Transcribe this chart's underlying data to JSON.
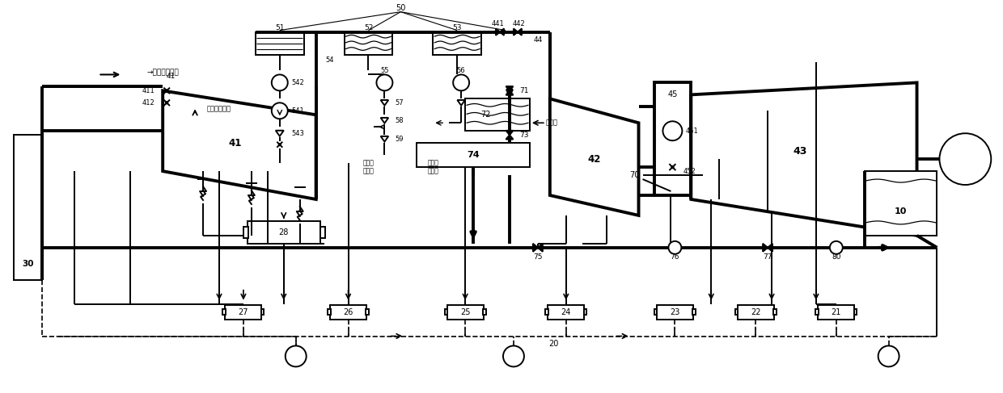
{
  "bg_color": "#ffffff",
  "lc": "#000000",
  "tlw": 2.8,
  "nlw": 1.4,
  "dlw": 1.2,
  "xlim": [
    0,
    124
  ],
  "ylim": [
    0,
    48.7
  ]
}
